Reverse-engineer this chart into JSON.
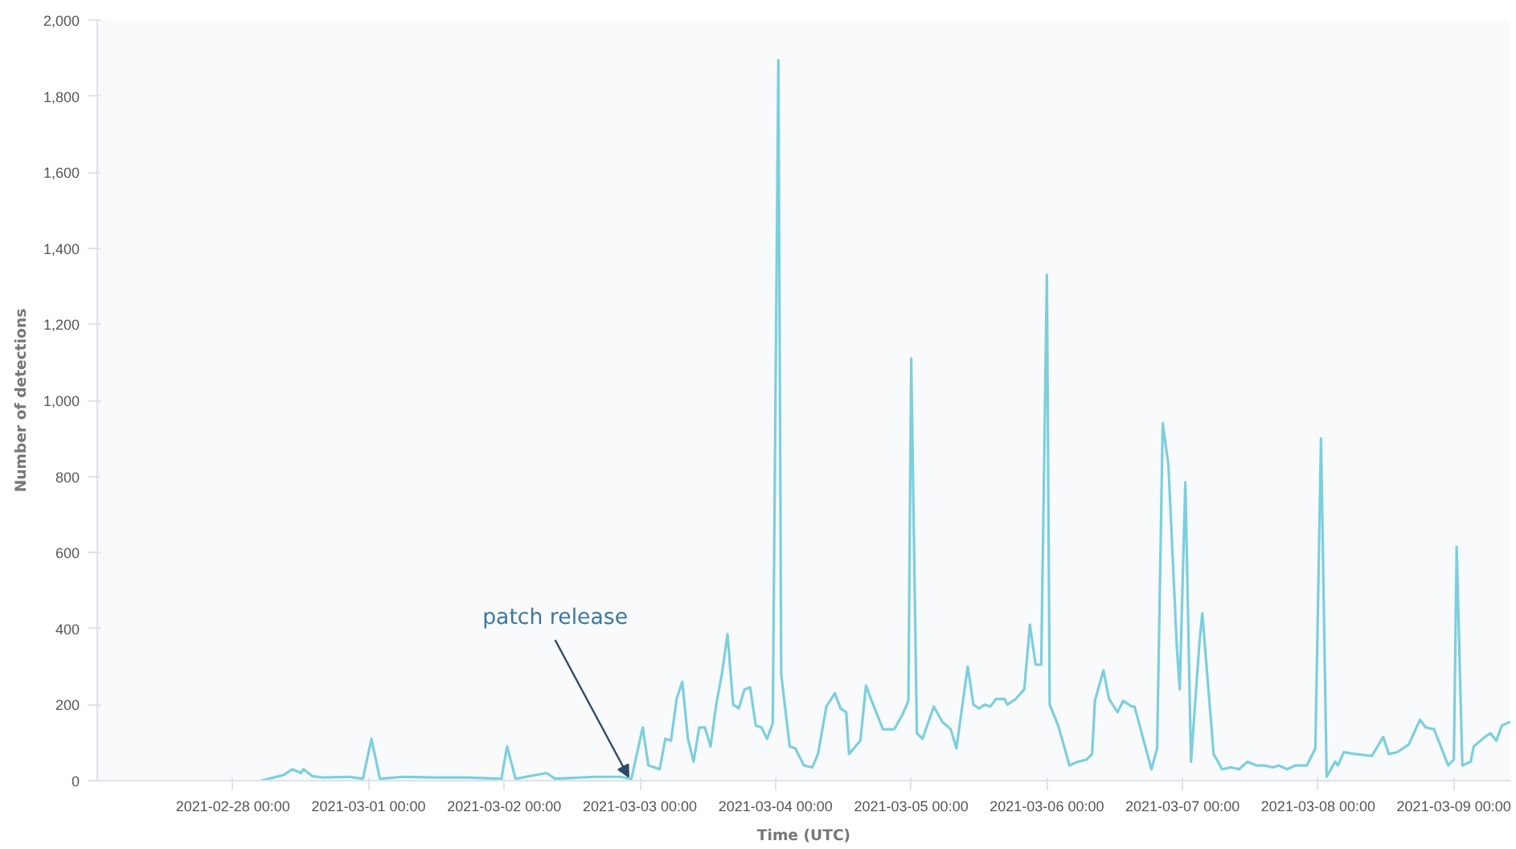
{
  "chart_data": {
    "type": "line",
    "xlabel": "Time (UTC)",
    "ylabel": "Number of detections",
    "x": [
      "2021-02-28T05:00",
      "2021-02-28T09:00",
      "2021-02-28T10:30",
      "2021-02-28T12:00",
      "2021-02-28T12:30",
      "2021-02-28T14:00",
      "2021-02-28T16:00",
      "2021-02-28T20:30",
      "2021-02-28T23:00",
      "2021-03-01T00:30",
      "2021-03-01T02:00",
      "2021-03-01T06:00",
      "2021-03-01T12:00",
      "2021-03-01T17:30",
      "2021-03-01T23:30",
      "2021-03-02T00:30",
      "2021-03-02T02:00",
      "2021-03-02T07:30",
      "2021-03-02T09:00",
      "2021-03-02T16:00",
      "2021-03-02T20:30",
      "2021-03-02T22:30",
      "2021-03-03T00:30",
      "2021-03-03T01:30",
      "2021-03-03T03:30",
      "2021-03-03T04:30",
      "2021-03-03T05:30",
      "2021-03-03T06:30",
      "2021-03-03T07:30",
      "2021-03-03T08:30",
      "2021-03-03T09:30",
      "2021-03-03T10:30",
      "2021-03-03T11:30",
      "2021-03-03T12:30",
      "2021-03-03T13:30",
      "2021-03-03T14:30",
      "2021-03-03T15:30",
      "2021-03-03T16:30",
      "2021-03-03T17:30",
      "2021-03-03T18:30",
      "2021-03-03T19:30",
      "2021-03-03T20:30",
      "2021-03-03T21:30",
      "2021-03-03T22:30",
      "2021-03-03T23:30",
      "2021-03-04T00:30",
      "2021-03-04T01:00",
      "2021-03-04T02:30",
      "2021-03-04T03:30",
      "2021-03-04T05:00",
      "2021-03-04T06:30",
      "2021-03-04T07:30",
      "2021-03-04T09:00",
      "2021-03-04T10:30",
      "2021-03-04T11:30",
      "2021-03-04T12:30",
      "2021-03-04T13:00",
      "2021-03-04T15:00",
      "2021-03-04T16:00",
      "2021-03-04T17:00",
      "2021-03-04T19:00",
      "2021-03-04T21:00",
      "2021-03-04T22:30",
      "2021-03-04T23:30",
      "2021-03-05T00:00",
      "2021-03-05T01:00",
      "2021-03-05T02:00",
      "2021-03-05T04:00",
      "2021-03-05T05:30",
      "2021-03-05T07:00",
      "2021-03-05T08:00",
      "2021-03-05T10:00",
      "2021-03-05T11:00",
      "2021-03-05T12:00",
      "2021-03-05T13:00",
      "2021-03-05T14:00",
      "2021-03-05T15:00",
      "2021-03-05T16:30",
      "2021-03-05T17:00",
      "2021-03-05T18:30",
      "2021-03-05T20:00",
      "2021-03-05T21:00",
      "2021-03-05T22:00",
      "2021-03-05T23:00",
      "2021-03-06T00:00",
      "2021-03-06T00:30",
      "2021-03-06T02:00",
      "2021-03-06T04:00",
      "2021-03-06T05:30",
      "2021-03-06T07:00",
      "2021-03-06T08:00",
      "2021-03-06T08:30",
      "2021-03-06T10:00",
      "2021-03-06T11:00",
      "2021-03-06T12:30",
      "2021-03-06T13:30",
      "2021-03-06T15:00",
      "2021-03-06T15:30",
      "2021-03-06T18:30",
      "2021-03-06T19:30",
      "2021-03-06T20:30",
      "2021-03-06T21:30",
      "2021-03-06T23:00",
      "2021-03-06T23:30",
      "2021-03-07T00:30",
      "2021-03-07T01:30",
      "2021-03-07T03:00",
      "2021-03-07T03:30",
      "2021-03-07T05:30",
      "2021-03-07T07:00",
      "2021-03-07T08:30",
      "2021-03-07T10:00",
      "2021-03-07T11:30",
      "2021-03-07T13:00",
      "2021-03-07T14:30",
      "2021-03-07T16:00",
      "2021-03-07T17:00",
      "2021-03-07T18:30",
      "2021-03-07T20:00",
      "2021-03-07T22:00",
      "2021-03-07T23:30",
      "2021-03-08T00:30",
      "2021-03-08T01:30",
      "2021-03-08T03:00",
      "2021-03-08T03:30",
      "2021-03-08T04:30",
      "2021-03-08T06:30",
      "2021-03-08T09:30",
      "2021-03-08T11:30",
      "2021-03-08T12:30",
      "2021-03-08T14:00",
      "2021-03-08T16:00",
      "2021-03-08T18:00",
      "2021-03-08T19:00",
      "2021-03-08T20:30",
      "2021-03-08T23:00",
      "2021-03-09T00:00",
      "2021-03-09T00:30",
      "2021-03-09T01:30",
      "2021-03-09T03:00",
      "2021-03-09T03:30",
      "2021-03-09T05:30",
      "2021-03-09T06:30",
      "2021-03-09T07:30",
      "2021-03-09T08:30",
      "2021-03-09T10:00"
    ],
    "series": [
      {
        "color": "#7ccfdd",
        "values": [
          0,
          15,
          30,
          20,
          30,
          12,
          8,
          10,
          5,
          110,
          5,
          10,
          8,
          8,
          5,
          90,
          5,
          20,
          5,
          10,
          10,
          5,
          140,
          40,
          30,
          110,
          105,
          215,
          260,
          110,
          50,
          140,
          140,
          90,
          200,
          280,
          385,
          200,
          190,
          240,
          245,
          145,
          140,
          110,
          150,
          1895,
          280,
          90,
          85,
          40,
          35,
          70,
          195,
          230,
          190,
          180,
          70,
          105,
          250,
          210,
          135,
          135,
          175,
          210,
          1110,
          125,
          110,
          195,
          155,
          135,
          85,
          300,
          200,
          190,
          200,
          195,
          215,
          215,
          200,
          215,
          240,
          410,
          305,
          305,
          1330,
          200,
          145,
          40,
          50,
          55,
          70,
          210,
          290,
          215,
          180,
          210,
          195,
          195,
          30,
          85,
          940,
          830,
          350,
          240,
          785,
          50,
          365,
          440,
          70,
          30,
          35,
          30,
          50,
          40,
          40,
          35,
          40,
          30,
          40,
          40,
          85,
          900,
          10,
          50,
          40,
          75,
          70,
          65,
          115,
          70,
          75,
          95,
          160,
          140,
          135,
          40,
          55,
          615,
          40,
          50,
          90,
          115,
          125,
          105,
          145,
          155
        ]
      }
    ],
    "xlim": [
      "2021-02-27T00:00",
      "2021-03-09T10:00"
    ],
    "xticks": [
      {
        "value": "2021-02-28",
        "label": "2021-02-28 00:00"
      },
      {
        "value": "2021-03-01",
        "label": "2021-03-01 00:00"
      },
      {
        "value": "2021-03-02",
        "label": "2021-03-02 00:00"
      },
      {
        "value": "2021-03-03",
        "label": "2021-03-03 00:00"
      },
      {
        "value": "2021-03-04",
        "label": "2021-03-04 00:00"
      },
      {
        "value": "2021-03-05",
        "label": "2021-03-05 00:00"
      },
      {
        "value": "2021-03-06",
        "label": "2021-03-06 00:00"
      },
      {
        "value": "2021-03-07",
        "label": "2021-03-07 00:00"
      },
      {
        "value": "2021-03-08",
        "label": "2021-03-08 00:00"
      },
      {
        "value": "2021-03-09",
        "label": "2021-03-09 00:00"
      }
    ],
    "ylim": [
      0,
      2000
    ],
    "yticks": [
      0,
      200,
      400,
      600,
      800,
      {
        "value": 1000,
        "label": "1,000"
      },
      {
        "value": 1200,
        "label": "1,200"
      },
      {
        "value": 1400,
        "label": "1,400"
      },
      {
        "value": 1600,
        "label": "1,600"
      },
      {
        "value": 1800,
        "label": "1,800"
      },
      {
        "value": 2000,
        "label": "2,000"
      }
    ],
    "annotations": [
      {
        "text": "patch release",
        "x": "2021-03-02T22:00",
        "y": 10
      }
    ],
    "grid": false,
    "marker": "none",
    "line_style": "solid"
  }
}
